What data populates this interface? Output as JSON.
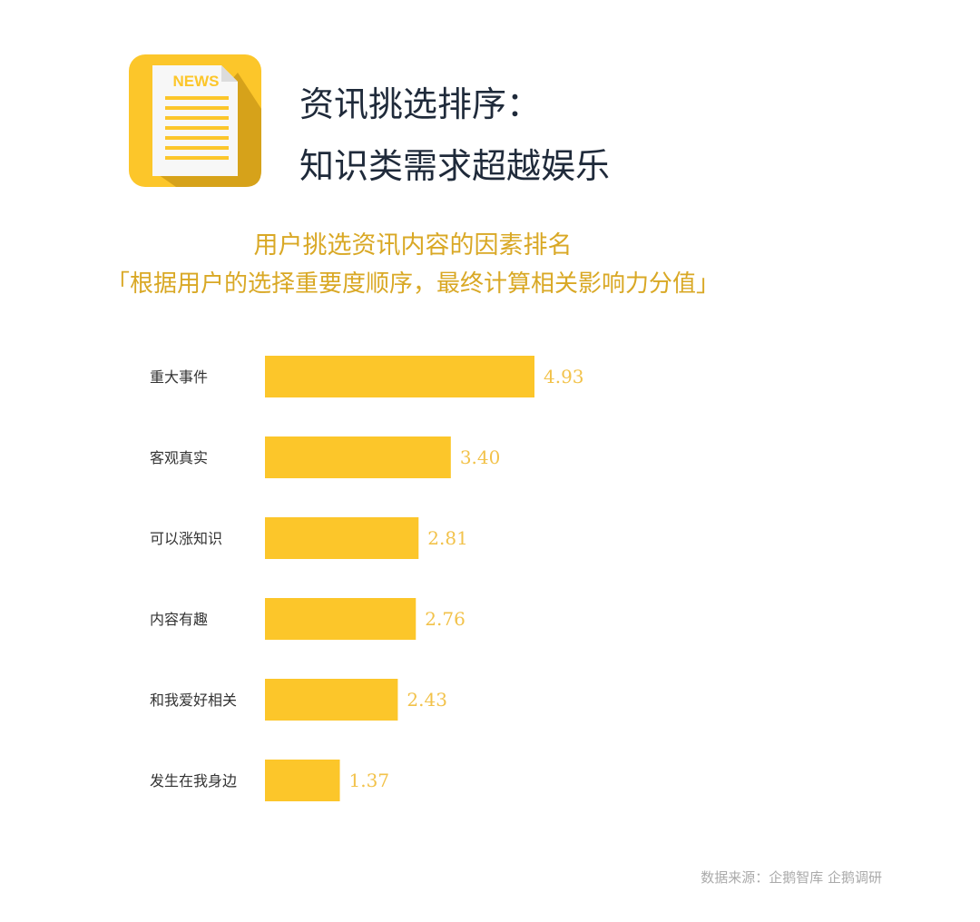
{
  "header": {
    "icon_label": "NEWS",
    "title_line1": "资讯挑选排序：",
    "title_line2": "知识类需求超越娱乐"
  },
  "colors": {
    "bar": "#fcc62a",
    "value_label": "#f2c24a",
    "category_label": "#333333",
    "icon_bg": "#fcc62a",
    "icon_shadow": "#d6a21a"
  },
  "chart_data": {
    "type": "bar",
    "orientation": "horizontal",
    "title": "用户挑选资讯内容的因素排名",
    "subtitle": "「根据用户的选择重要度顺序，最终计算相关影响力分值」",
    "categories": [
      "重大事件",
      "客观真实",
      "可以涨知识",
      "内容有趣",
      "和我爱好相关",
      "发生在我身边"
    ],
    "values": [
      4.93,
      3.4,
      2.81,
      2.76,
      2.43,
      1.37
    ],
    "value_labels": [
      "4.93",
      "3.40",
      "2.81",
      "2.76",
      "2.43",
      "1.37"
    ],
    "xlim": [
      0,
      5
    ],
    "grid": false,
    "legend": "none",
    "xlabel": "",
    "ylabel": ""
  },
  "footer": {
    "source": "数据来源：企鹅智库 企鹅调研"
  }
}
